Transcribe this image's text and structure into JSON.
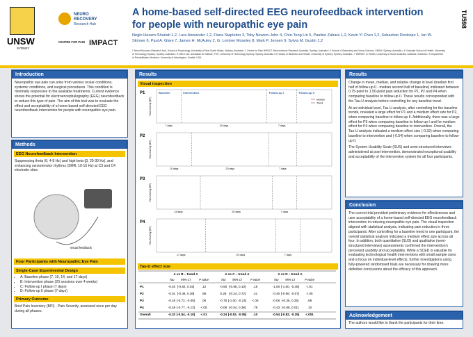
{
  "header": {
    "poster_id": "TU598",
    "logos": {
      "unsw": "UNSW",
      "sydney": "SYDNEY",
      "neuro": "NEURO",
      "recovery": "RECOVERY",
      "hub": "Research Hub",
      "centre": "CENTRE FOR PAIN",
      "impact": "IMPACT"
    },
    "title": "A home-based self-directed EEG neurofeedback intervention for people with neuropathic eye pain",
    "authors": "Negin Hesam-Shariati 1,2, Lara Alexander 1,2, Fiona Stapleton 3, Toby Newton-John 4, Chin-Teng Lin 5, Pauline Zahara 1,2, Kevin Yi Chen 1,2, Sebastian Restrepo 1, Ian W. Skinner 6, Paul A. Glare 7, James H. McAuley 2, G. Lorimer Moseley 8, Mark P. Jensen 9, Sylvia M. Gustin 1,2",
    "affiliations": "1 NeuroRecovery Research Hub, School of Psychology, University of New South Wales, Sydney, Australia • 2 Centre for Pain IMPACT, Neuroscience Research Australia, Sydney, Australia • 3 School of Optometry and Vision Science, UNSW, Sydney, Australia • 4 Graduate School of Health, University of Technology Sydney, Sydney, Australia • 5 CIBCI Lab, Australian AI Institute, FEIT, University of Technology Sydney, Sydney, Australia • 6 Faculty of Medicine and Health, University of Sydney, Sydney, Australia • 7 IIMPACT in Health, University of South Australia, Adelaide, Australia • 9 Department of Rehabilitation Medicine, University of Washington, Seattle, USA"
  },
  "introduction": {
    "heading": "Introduction",
    "text": "Neuropathic eye pain can arise from various ocular conditions, systemic conditions, and surgical procedures. This condition is minimally responsive to the available treatments. Current evidence shows the potential for electroencephalography (EEG) neurofeedback to reduce this type of pain. The aim of this trial was to evaluate the effect and acceptability of a home-based self-directed EEG neurofeedback intervention for people with neuropathic eye pain."
  },
  "methods": {
    "heading": "Methods",
    "eeg_heading": "EEG Neurofeedback Intervention",
    "eeg_text": "Suppressing theta (θ, 4-8 Hz) and high-beta (β, 20-30 Hz), and enhancing sensorimotor rhythms (SMR, 10-15 Hz) at C3 and C4 electrode sites.",
    "figure_labels": [
      "visual feedback"
    ],
    "participants_heading": "Four Participants with Neuropathic Eye Pain",
    "design_heading": "Single-Case Experimental Design",
    "phases": [
      "A: Baseline phase (7, 10, 14, and 17 days)",
      "B: Intervention phase (20 sessions over 4 weeks)",
      "C: Follow-up I phase (7 days)",
      "D: Follow-up II phase (7 days)"
    ],
    "outcome_heading": "Primary Outcome",
    "outcome_text": "Brief Pain Inventory (BPI) - Pain Severity, assessed once per day during all phases."
  },
  "results": {
    "heading": "Results",
    "visual_heading": "Visual inspection",
    "plots": {
      "phase_labels": [
        "Baseline",
        "Intervention",
        "Follow-up I",
        "Follow-up II"
      ],
      "legend": [
        "Median",
        "Trend"
      ],
      "y_label": "Pain Severity (BPI)",
      "panels": [
        {
          "label": "P1",
          "durations": [
            "7 days",
            "20 days",
            "7 days"
          ]
        },
        {
          "label": "P2",
          "durations": [
            "10 days",
            "20 days",
            "7 days"
          ]
        },
        {
          "label": "P3",
          "durations": [
            "14 days",
            "20 days",
            "7 days"
          ]
        },
        {
          "label": "P4",
          "durations": [
            "17 days",
            "20 days",
            "7 days"
          ]
        }
      ]
    },
    "tau_heading": "Tau-U effect size",
    "table": {
      "groups": [
        "A vs B – trend A",
        "A vs C – trend A",
        "A vs D – trend A"
      ],
      "columns": [
        "Tau",
        "95% CI",
        "P value"
      ],
      "rows": [
        [
          "P1",
          "-0.40",
          "[-0.82, 0.02]",
          ".12",
          "-0.50",
          "[-0.95, 0.10]",
          ".18",
          "-1.00",
          "[-1.00, -0.48]",
          "<.01"
        ],
        [
          "P2",
          "-0.01",
          "[-0.38, 0.36]",
          ".96",
          "0.26",
          "[-0.24, 0.72]",
          ".41",
          "-0.40",
          "[-0.66, -0.07]",
          "<.05"
        ],
        [
          "P3",
          "-0.45",
          "[-0.72, -0.05]",
          ".06",
          "-0.76",
          "[-1.00, -0.23]",
          "<.05",
          "-0.06",
          "[-0.36, 0.25]",
          ".68"
        ],
        [
          "P4",
          "-0.48",
          "[-0.77, -0.13]",
          "<.05",
          "-0.08",
          "[-0.54, 0.38]",
          ".78",
          "-0.43",
          "[-0.86, 0.01]",
          ".10"
        ],
        [
          "Overall",
          "-0.32",
          "[-0.54, -0.10]",
          "<.01",
          "-0.24",
          "[-0.52, -0.05]",
          ".10",
          "-0.54",
          "[-0.82, -0.25]",
          "<.001"
        ]
      ]
    },
    "right_heading": "Results",
    "paragraphs": [
      "Change in mean, median, and relative change in level (median first half of follow-up II - median second half of baseline) indicated between 0.75-point to 1.50-point pain reduction for P1, P2 and P4 when comparing baseline to follow-up II. These results corresponded with the Tau-U analysis before controlling for any baseline trend.",
      "At an individual level, Tau-U analysis, after controlling for the baseline trends, revealed a large effect for P1 and a medium effect size for P2, when comparing baseline to follow-up II. Additionally, there was a large effect for P3 when comparing baseline to follow-up I and for medium effect for P4 when comparing baseline to intervention. Overall, the Tau-U analysis indicated a medium effect size (-0.32) when comparing baseline to intervention and (-0.54) when comparing baseline to follow-up II.",
      "The System Usability Scale (SUS) and semi-structured interviews administered at post-intervention, demonstrated exceptional usability and acceptability of the intervention system for all four participants."
    ]
  },
  "conclusion": {
    "heading": "Conclusion",
    "text": "The current trial provided preliminary evidence for effectiveness and user acceptability of a home-based self-directed EEG neurofeedback intervention in reducing neuropathic eye pain. The visual inspection aligned with statistical analysis, indicating pain reduction in three participants. After controlling for a baseline trend in one participant, the overall statistical analysis indicated a medium effect size across all four. In addition, both quantitative (SUS) and qualitative (semi-structured interviews) assessments confirmed the intervention's perceived usability and acceptability. While a SCED is valuable for evaluating technological health interventions with small sample sizes and a focus on individual-level effects, further investigations using fully-powered randomised trials are necessary for drawing more definitive conclusions about the efficacy of this approach."
  },
  "acknowledgement": {
    "heading": "Acknowledgement",
    "text": "The authors would like to thank the participants for their time."
  }
}
